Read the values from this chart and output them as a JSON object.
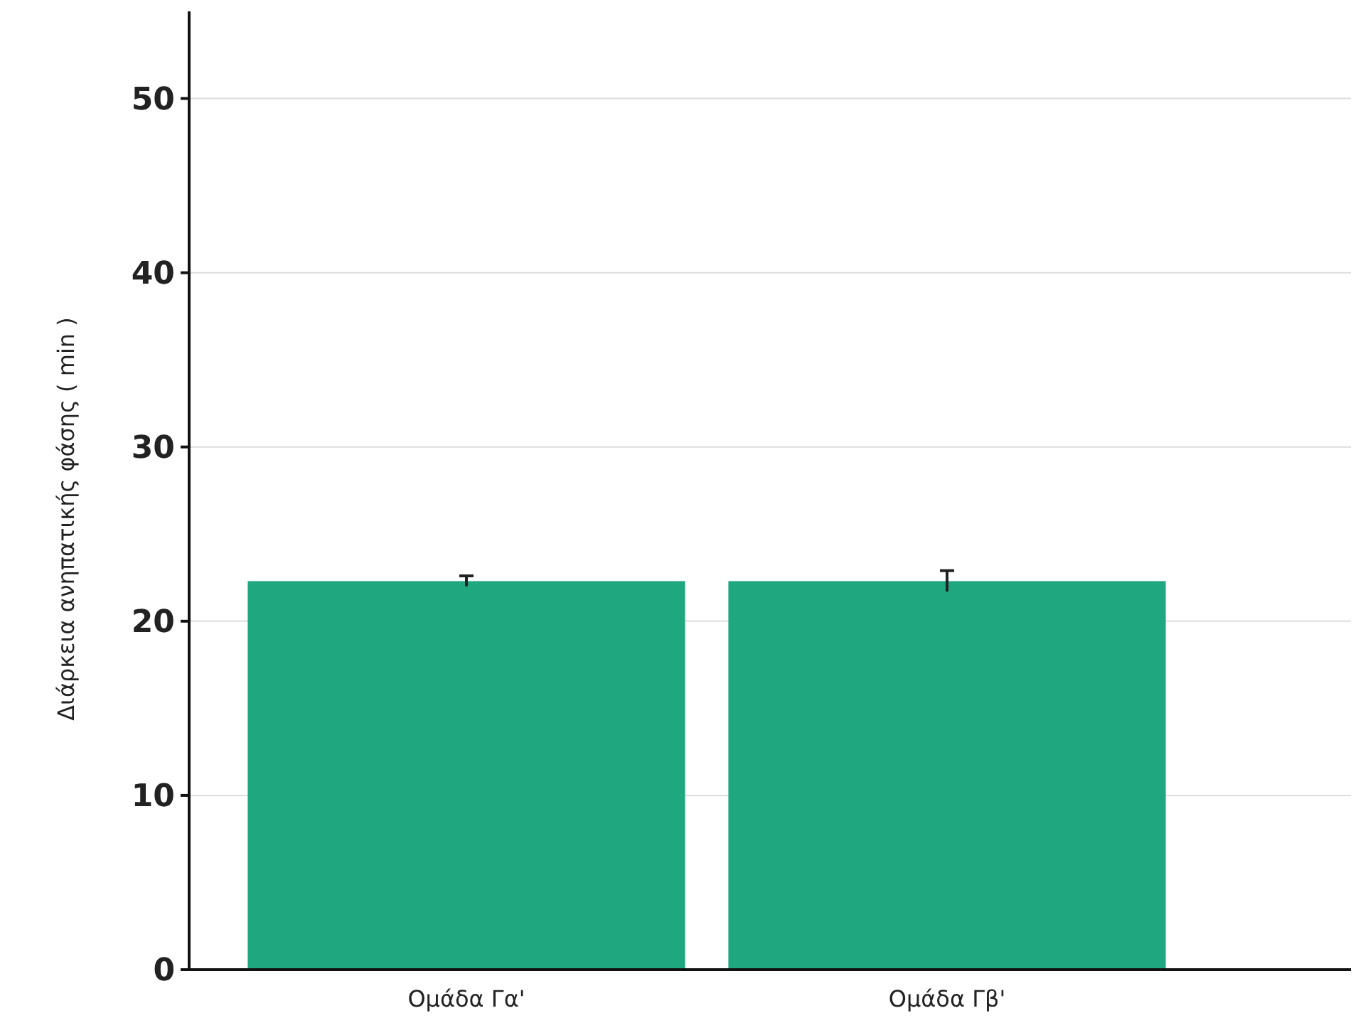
{
  "chart_data": {
    "type": "bar",
    "ylabel": "Διάρκεια ανηπατικής φάσης  ( min )",
    "categories": [
      "Ομάδα Γα'",
      "Ομάδα Γβ'"
    ],
    "values": [
      22.3,
      22.3
    ],
    "errors": [
      0.3,
      0.6
    ],
    "color": "#1fa77f",
    "ylim": [
      0,
      55
    ],
    "yticks": [
      0,
      10,
      20,
      30,
      40,
      50
    ],
    "grid": "y"
  }
}
